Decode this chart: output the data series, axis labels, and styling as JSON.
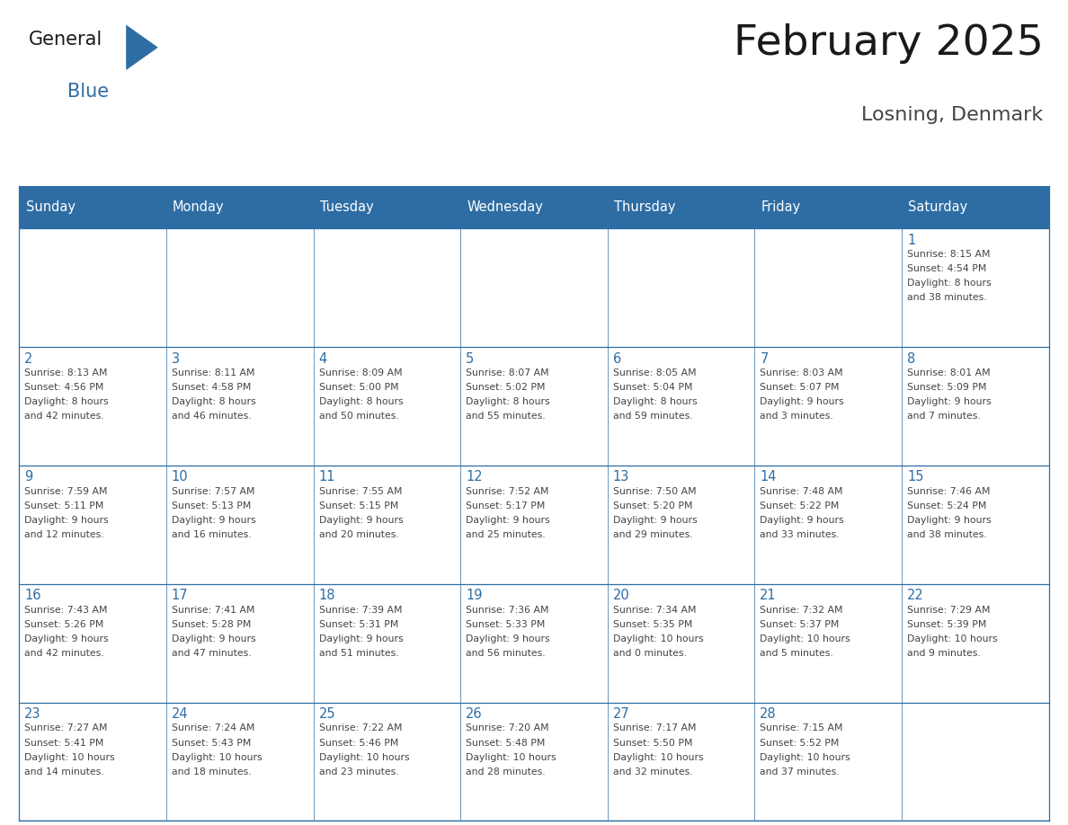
{
  "title": "February 2025",
  "subtitle": "Losning, Denmark",
  "days_of_week": [
    "Sunday",
    "Monday",
    "Tuesday",
    "Wednesday",
    "Thursday",
    "Friday",
    "Saturday"
  ],
  "header_bg": "#2E6DA4",
  "header_text": "#FFFFFF",
  "cell_bg": "#FFFFFF",
  "border_color": "#2E6DA4",
  "day_number_color": "#2E6DA4",
  "info_text_color": "#444444",
  "title_color": "#1a1a1a",
  "subtitle_color": "#444444",
  "logo_general_color": "#1a1a1a",
  "logo_blue_color": "#2E6DA4",
  "calendar_data": [
    [
      null,
      null,
      null,
      null,
      null,
      null,
      {
        "day": 1,
        "sunrise": "8:15 AM",
        "sunset": "4:54 PM",
        "daylight": "8 hours and 38 minutes."
      }
    ],
    [
      {
        "day": 2,
        "sunrise": "8:13 AM",
        "sunset": "4:56 PM",
        "daylight": "8 hours and 42 minutes."
      },
      {
        "day": 3,
        "sunrise": "8:11 AM",
        "sunset": "4:58 PM",
        "daylight": "8 hours and 46 minutes."
      },
      {
        "day": 4,
        "sunrise": "8:09 AM",
        "sunset": "5:00 PM",
        "daylight": "8 hours and 50 minutes."
      },
      {
        "day": 5,
        "sunrise": "8:07 AM",
        "sunset": "5:02 PM",
        "daylight": "8 hours and 55 minutes."
      },
      {
        "day": 6,
        "sunrise": "8:05 AM",
        "sunset": "5:04 PM",
        "daylight": "8 hours and 59 minutes."
      },
      {
        "day": 7,
        "sunrise": "8:03 AM",
        "sunset": "5:07 PM",
        "daylight": "9 hours and 3 minutes."
      },
      {
        "day": 8,
        "sunrise": "8:01 AM",
        "sunset": "5:09 PM",
        "daylight": "9 hours and 7 minutes."
      }
    ],
    [
      {
        "day": 9,
        "sunrise": "7:59 AM",
        "sunset": "5:11 PM",
        "daylight": "9 hours and 12 minutes."
      },
      {
        "day": 10,
        "sunrise": "7:57 AM",
        "sunset": "5:13 PM",
        "daylight": "9 hours and 16 minutes."
      },
      {
        "day": 11,
        "sunrise": "7:55 AM",
        "sunset": "5:15 PM",
        "daylight": "9 hours and 20 minutes."
      },
      {
        "day": 12,
        "sunrise": "7:52 AM",
        "sunset": "5:17 PM",
        "daylight": "9 hours and 25 minutes."
      },
      {
        "day": 13,
        "sunrise": "7:50 AM",
        "sunset": "5:20 PM",
        "daylight": "9 hours and 29 minutes."
      },
      {
        "day": 14,
        "sunrise": "7:48 AM",
        "sunset": "5:22 PM",
        "daylight": "9 hours and 33 minutes."
      },
      {
        "day": 15,
        "sunrise": "7:46 AM",
        "sunset": "5:24 PM",
        "daylight": "9 hours and 38 minutes."
      }
    ],
    [
      {
        "day": 16,
        "sunrise": "7:43 AM",
        "sunset": "5:26 PM",
        "daylight": "9 hours and 42 minutes."
      },
      {
        "day": 17,
        "sunrise": "7:41 AM",
        "sunset": "5:28 PM",
        "daylight": "9 hours and 47 minutes."
      },
      {
        "day": 18,
        "sunrise": "7:39 AM",
        "sunset": "5:31 PM",
        "daylight": "9 hours and 51 minutes."
      },
      {
        "day": 19,
        "sunrise": "7:36 AM",
        "sunset": "5:33 PM",
        "daylight": "9 hours and 56 minutes."
      },
      {
        "day": 20,
        "sunrise": "7:34 AM",
        "sunset": "5:35 PM",
        "daylight": "10 hours and 0 minutes."
      },
      {
        "day": 21,
        "sunrise": "7:32 AM",
        "sunset": "5:37 PM",
        "daylight": "10 hours and 5 minutes."
      },
      {
        "day": 22,
        "sunrise": "7:29 AM",
        "sunset": "5:39 PM",
        "daylight": "10 hours and 9 minutes."
      }
    ],
    [
      {
        "day": 23,
        "sunrise": "7:27 AM",
        "sunset": "5:41 PM",
        "daylight": "10 hours and 14 minutes."
      },
      {
        "day": 24,
        "sunrise": "7:24 AM",
        "sunset": "5:43 PM",
        "daylight": "10 hours and 18 minutes."
      },
      {
        "day": 25,
        "sunrise": "7:22 AM",
        "sunset": "5:46 PM",
        "daylight": "10 hours and 23 minutes."
      },
      {
        "day": 26,
        "sunrise": "7:20 AM",
        "sunset": "5:48 PM",
        "daylight": "10 hours and 28 minutes."
      },
      {
        "day": 27,
        "sunrise": "7:17 AM",
        "sunset": "5:50 PM",
        "daylight": "10 hours and 32 minutes."
      },
      {
        "day": 28,
        "sunrise": "7:15 AM",
        "sunset": "5:52 PM",
        "daylight": "10 hours and 37 minutes."
      },
      null
    ]
  ]
}
